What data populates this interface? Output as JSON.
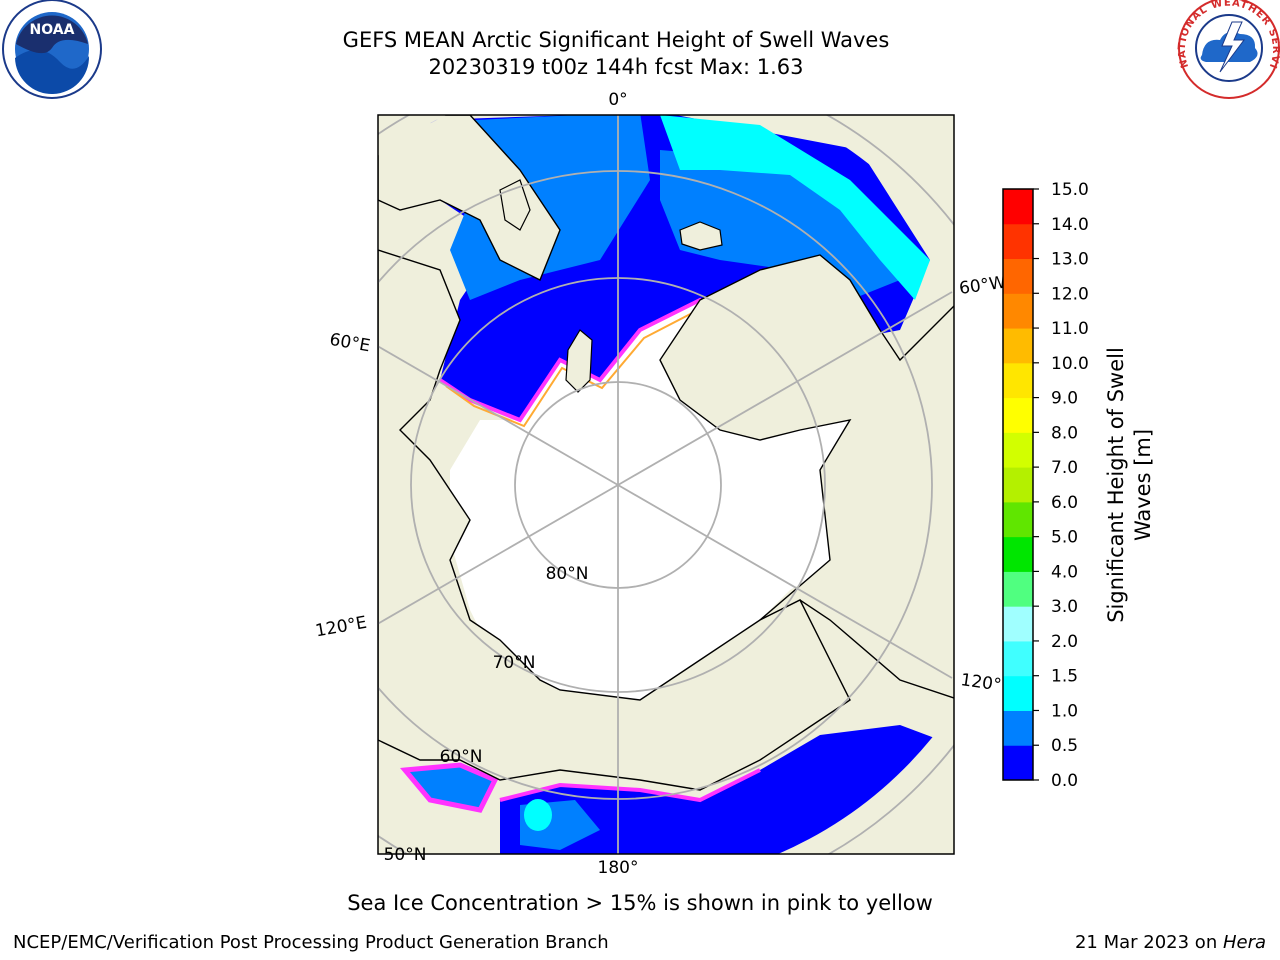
{
  "title": {
    "line1": "GEFS MEAN Arctic Significant Height of Swell Waves",
    "line2": "20230319 t00z 144h fcst   Max: 1.63"
  },
  "logos": {
    "left_text": "NOAA",
    "right_text": "NATIONAL WEATHER SERVICE"
  },
  "map": {
    "projection": "north-polar-stereographic",
    "meridian_labels": [
      "0°",
      "60°E",
      "120°E",
      "180°",
      "120°W",
      "60°W"
    ],
    "parallel_labels": [
      "80°N",
      "70°N",
      "60°N",
      "50°N"
    ],
    "land_color": "#efefdc",
    "ice_color": "#ffffff",
    "ice_edge_colors": [
      "#ff33ff",
      "#ffaa33"
    ]
  },
  "colorbar": {
    "ticks": [
      "0.0",
      "0.5",
      "1.0",
      "1.5",
      "2.0",
      "3.0",
      "4.0",
      "5.0",
      "6.0",
      "7.0",
      "8.0",
      "9.0",
      "10.0",
      "11.0",
      "12.0",
      "13.0",
      "14.0",
      "15.0"
    ],
    "colors": [
      "#0000ff",
      "#0080ff",
      "#00ffff",
      "#40ffff",
      "#a0ffff",
      "#50ff80",
      "#00e600",
      "#60e600",
      "#b4f000",
      "#d2ff00",
      "#ffff00",
      "#ffe600",
      "#ffbb00",
      "#ff8800",
      "#ff6600",
      "#ff3300",
      "#ff0000"
    ],
    "label_line1": "Significant Height of Swell",
    "label_line2": "Waves [m]"
  },
  "caption": "Sea Ice Concentration > 15% is shown in pink to yellow",
  "footer": {
    "left": "NCEP/EMC/Verification Post Processing Product Generation Branch",
    "right_date": "21 Mar 2023 on ",
    "right_host": "Hera"
  }
}
